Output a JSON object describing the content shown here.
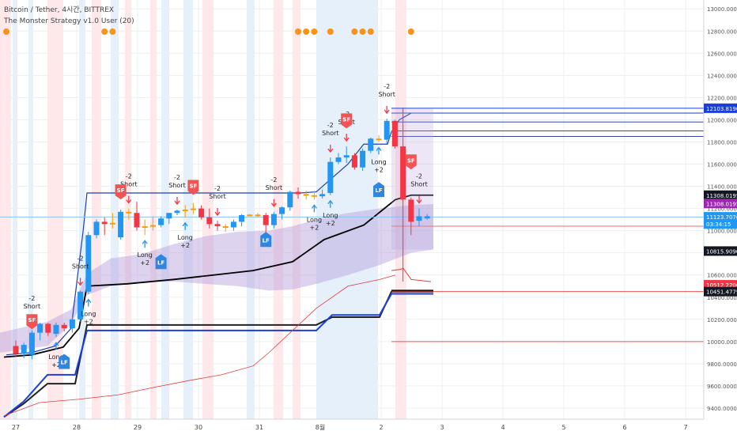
{
  "header": {
    "symbol": "Bitcoin / Tether, 4시간, BITTREX",
    "indicator": "The Monster Strategy v1.0 User (20)"
  },
  "colors": {
    "bull": "#2196f3",
    "bear": "#f23645",
    "neutral": "#f59e0b",
    "blue_line": "#1e3fae",
    "black_line": "#000000",
    "red_line": "#e53935",
    "cloud": "#b39ddb",
    "dot": "#f7931a"
  },
  "chart_data": {
    "type": "candlestick",
    "x_tick_labels": [
      "27",
      "28",
      "29",
      "30",
      "31",
      "8월",
      "2",
      "3",
      "4",
      "5",
      "6",
      "7"
    ],
    "y_tick_labels": [
      "9400.000000",
      "9600.000000",
      "9800.000000",
      "10000.000000",
      "10200.000000",
      "10400.000000",
      "10600.000000",
      "10800.000000",
      "11000.000000",
      "11200.000000",
      "11400.000000",
      "11600.000000",
      "11800.000000",
      "12000.000000",
      "12200.000000",
      "12400.000000",
      "12600.000000",
      "12800.000000",
      "13000.000000"
    ],
    "ylim": [
      9300,
      13080
    ],
    "price_tags": [
      {
        "label": "12103.81900",
        "value": 12104,
        "color": "#1a3fd6",
        "text_color": "#ffffff"
      },
      {
        "label": "11308.01950",
        "value": 11320,
        "color": "#131722",
        "text_color": "#ffffff"
      },
      {
        "label": "11308.01950",
        "value": 11245,
        "color": "#9c27b0",
        "text_color": "#ffffff"
      },
      {
        "label": "11123.70700",
        "value": 11125,
        "color": "#2196f3",
        "text_color": "#ffffff"
      },
      {
        "label": "03:34:15",
        "value": 11060,
        "color": "#2196f3",
        "text_color": "#ffffff"
      },
      {
        "label": "10815.90900",
        "value": 10816,
        "color": "#131722",
        "text_color": "#ffffff"
      },
      {
        "label": "10512.22000",
        "value": 10512,
        "color": "#f23645",
        "text_color": "#ffffff"
      },
      {
        "label": "10451.47797",
        "value": 10451,
        "color": "#131722",
        "text_color": "#ffffff"
      }
    ],
    "candles": [
      {
        "o": 9960,
        "h": 10010,
        "c": 9890,
        "l": 9860
      },
      {
        "o": 9890,
        "h": 9990,
        "c": 9970,
        "l": 9850
      },
      {
        "o": 9880,
        "h": 10100,
        "c": 10080,
        "l": 9840
      },
      {
        "o": 10080,
        "h": 10170,
        "c": 10160,
        "l": 10010
      },
      {
        "o": 10160,
        "h": 10170,
        "c": 10080,
        "l": 10050
      },
      {
        "o": 10070,
        "h": 10170,
        "c": 10150,
        "l": 10040
      },
      {
        "o": 10150,
        "h": 10170,
        "c": 10120,
        "l": 10090
      },
      {
        "o": 10120,
        "h": 10230,
        "c": 10200,
        "l": 10080
      },
      {
        "o": 10200,
        "h": 10460,
        "c": 10450,
        "l": 10180
      },
      {
        "o": 10450,
        "h": 10990,
        "c": 10960,
        "l": 10430
      },
      {
        "o": 10960,
        "h": 11100,
        "c": 11080,
        "l": 10930
      },
      {
        "o": 11080,
        "h": 11120,
        "c": 11060,
        "l": 10960
      },
      {
        "o": 11060,
        "h": 11160,
        "c": 11070,
        "l": 11020
      },
      {
        "o": 10940,
        "h": 11190,
        "c": 11170,
        "l": 10920
      },
      {
        "o": 11170,
        "h": 11200,
        "c": 11160,
        "l": 11100
      },
      {
        "o": 11160,
        "h": 11260,
        "c": 11030,
        "l": 11000
      },
      {
        "o": 11030,
        "h": 11100,
        "c": 11040,
        "l": 10960
      },
      {
        "o": 11040,
        "h": 11130,
        "c": 11050,
        "l": 11000
      },
      {
        "o": 11050,
        "h": 11130,
        "c": 11110,
        "l": 11030
      },
      {
        "o": 11110,
        "h": 11150,
        "c": 11160,
        "l": 11060
      },
      {
        "o": 11160,
        "h": 11190,
        "c": 11180,
        "l": 11140
      },
      {
        "o": 11180,
        "h": 11230,
        "c": 11190,
        "l": 11120
      },
      {
        "o": 11190,
        "h": 11250,
        "c": 11200,
        "l": 11150
      },
      {
        "o": 11200,
        "h": 11230,
        "c": 11120,
        "l": 11100
      },
      {
        "o": 11120,
        "h": 11200,
        "c": 11060,
        "l": 11020
      },
      {
        "o": 11060,
        "h": 11090,
        "c": 11040,
        "l": 11000
      },
      {
        "o": 11040,
        "h": 11060,
        "c": 11030,
        "l": 10990
      },
      {
        "o": 11030,
        "h": 11100,
        "c": 11080,
        "l": 11000
      },
      {
        "o": 11080,
        "h": 11150,
        "c": 11140,
        "l": 11040
      },
      {
        "o": 11140,
        "h": 11150,
        "c": 11145,
        "l": 11130
      },
      {
        "o": 11145,
        "h": 11160,
        "c": 11140,
        "l": 11120
      },
      {
        "o": 11140,
        "h": 11160,
        "c": 11050,
        "l": 10960
      },
      {
        "o": 11050,
        "h": 11170,
        "c": 11150,
        "l": 11020
      },
      {
        "o": 11150,
        "h": 11220,
        "c": 11210,
        "l": 11100
      },
      {
        "o": 11210,
        "h": 11360,
        "c": 11350,
        "l": 11180
      },
      {
        "o": 11350,
        "h": 11390,
        "c": 11330,
        "l": 11290
      },
      {
        "o": 11330,
        "h": 11360,
        "c": 11320,
        "l": 11280
      },
      {
        "o": 11320,
        "h": 11360,
        "c": 11310,
        "l": 11280
      },
      {
        "o": 11310,
        "h": 11370,
        "c": 11330,
        "l": 11290
      },
      {
        "o": 11340,
        "h": 11660,
        "c": 11620,
        "l": 11320
      },
      {
        "o": 11620,
        "h": 11700,
        "c": 11660,
        "l": 11600
      },
      {
        "o": 11660,
        "h": 11760,
        "c": 11680,
        "l": 11610
      },
      {
        "o": 11680,
        "h": 11700,
        "c": 11570,
        "l": 11550
      },
      {
        "o": 11570,
        "h": 11740,
        "c": 11720,
        "l": 11540
      },
      {
        "o": 11720,
        "h": 11840,
        "c": 11830,
        "l": 11700
      },
      {
        "o": 11830,
        "h": 11860,
        "c": 11820,
        "l": 11800
      },
      {
        "o": 11820,
        "h": 12010,
        "c": 11990,
        "l": 11780
      },
      {
        "o": 11990,
        "h": 12000,
        "c": 11760,
        "l": 11740
      },
      {
        "o": 11760,
        "h": 12110,
        "c": 11280,
        "l": 10540
      },
      {
        "o": 11280,
        "h": 11300,
        "c": 11080,
        "l": 10960
      },
      {
        "o": 11090,
        "h": 11200,
        "c": 11130,
        "l": 11040
      },
      {
        "o": 11110,
        "h": 11150,
        "c": 11130,
        "l": 11100
      }
    ],
    "annotations": [
      {
        "type": "short",
        "bar": 2,
        "lines": [
          "-2",
          "Short"
        ]
      },
      {
        "type": "long",
        "bar": 5,
        "lines": [
          "Long",
          "+2"
        ]
      },
      {
        "type": "long",
        "bar": 9,
        "lines": [
          "Long",
          "+2"
        ]
      },
      {
        "type": "short",
        "bar": 8,
        "lines": [
          "-2",
          "Short"
        ]
      },
      {
        "type": "short",
        "bar": 14,
        "lines": [
          "-2",
          "Short"
        ]
      },
      {
        "type": "long",
        "bar": 16,
        "lines": [
          "Long",
          "+2"
        ]
      },
      {
        "type": "short",
        "bar": 20,
        "lines": [
          "-2",
          "Short"
        ]
      },
      {
        "type": "long",
        "bar": 21,
        "lines": [
          "Long",
          "+2"
        ]
      },
      {
        "type": "short",
        "bar": 25,
        "lines": [
          "-2",
          "Short"
        ]
      },
      {
        "type": "short",
        "bar": 32,
        "lines": [
          "-2",
          "Short"
        ]
      },
      {
        "type": "long",
        "bar": 37,
        "lines": [
          "Long",
          "+2"
        ]
      },
      {
        "type": "short",
        "bar": 39,
        "lines": [
          "-2",
          "Short"
        ]
      },
      {
        "type": "long",
        "bar": 39,
        "lines": [
          "Long",
          "+2"
        ]
      },
      {
        "type": "short",
        "bar": 41,
        "lines": [
          "-2",
          "Short"
        ]
      },
      {
        "type": "long",
        "bar": 45,
        "lines": [
          "Long",
          "+2"
        ]
      },
      {
        "type": "short",
        "bar": 46,
        "lines": [
          "-2",
          "Short"
        ]
      },
      {
        "type": "short",
        "bar": 50,
        "lines": [
          "-2",
          "Short"
        ]
      }
    ],
    "badges": [
      {
        "label": "SF",
        "bar": 2,
        "value": 10190,
        "kind": "sell"
      },
      {
        "label": "LF",
        "bar": 6,
        "value": 9810,
        "kind": "buy"
      },
      {
        "label": "SF",
        "bar": 13,
        "value": 11360,
        "kind": "sell"
      },
      {
        "label": "LF",
        "bar": 18,
        "value": 10710,
        "kind": "buy"
      },
      {
        "label": "SF",
        "bar": 22,
        "value": 11400,
        "kind": "sell"
      },
      {
        "label": "LF",
        "bar": 31,
        "value": 10910,
        "kind": "buy"
      },
      {
        "label": "SF",
        "bar": 41,
        "value": 12000,
        "kind": "sell"
      },
      {
        "label": "LF",
        "bar": 45,
        "value": 11360,
        "kind": "buy"
      },
      {
        "label": "SF",
        "bar": 49,
        "value": 11630,
        "kind": "sell"
      }
    ],
    "dots": [
      0,
      11,
      12,
      35,
      36,
      37,
      39,
      42,
      43,
      44,
      49
    ]
  }
}
